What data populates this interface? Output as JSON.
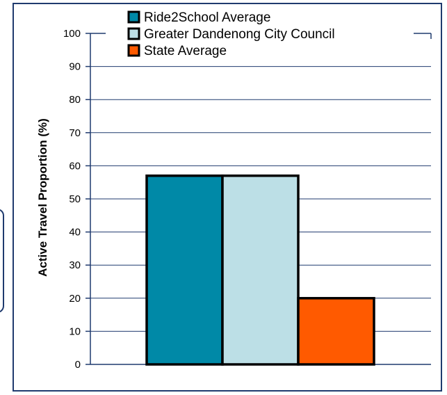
{
  "chart_data": {
    "type": "bar",
    "title": "",
    "xlabel": "",
    "ylabel": "Active Travel Proportion (%)",
    "ylim": [
      0,
      100
    ],
    "yticks": [
      0,
      10,
      20,
      30,
      40,
      50,
      60,
      70,
      80,
      90,
      100
    ],
    "grid": true,
    "legend_position": "top",
    "categories": [
      ""
    ],
    "series": [
      {
        "name": "Ride2School Average",
        "values": [
          57
        ],
        "color": "#0089a7"
      },
      {
        "name": "Greater Dandenong City Council",
        "values": [
          57
        ],
        "color": "#bcdfe6"
      },
      {
        "name": "State Average",
        "values": [
          20
        ],
        "color": "#ff5a00"
      }
    ],
    "colors": {
      "axis": "#1f3a6e",
      "grid": "#1f3a6e",
      "bar_outline": "#000000"
    }
  }
}
